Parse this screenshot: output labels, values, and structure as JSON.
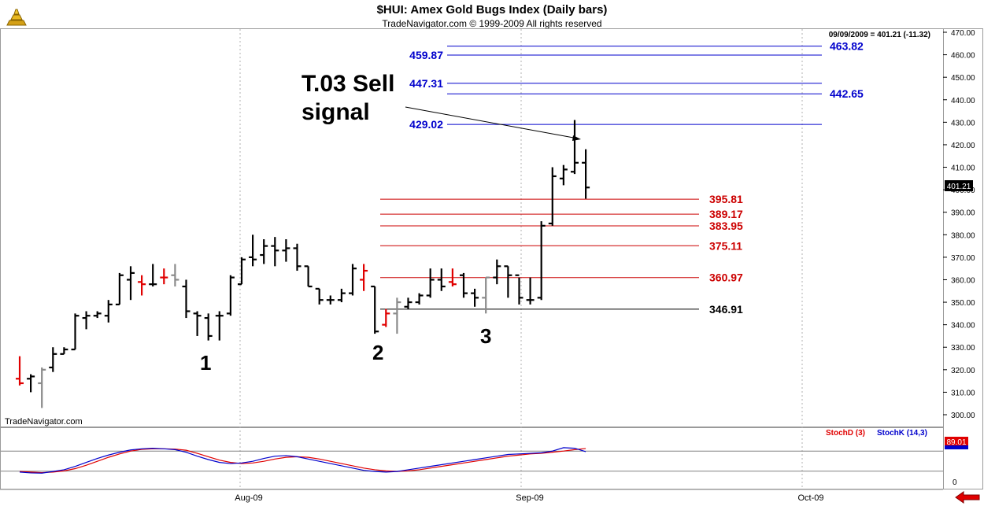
{
  "header": {
    "title": "$HUI:  Amex Gold Bugs Index  (Daily bars)",
    "subtitle": "TradeNavigator.com © 1999-2009 All rights reserved",
    "quote": "09/09/2009 = 401.21 (-11.32)",
    "last_price_tag": "401.21",
    "watermark": "TradeNavigator.com"
  },
  "colors": {
    "up_bar": "#000000",
    "down_bar": "#e00000",
    "neutral_bar": "#8a8a8a",
    "blue_level": "#0000cc",
    "red_level": "#cc0000",
    "stoch_d": "#e00000",
    "stoch_k": "#0000cc"
  },
  "chart_data": [
    {
      "type": "ohlc",
      "ylim": [
        295,
        472
      ],
      "ticks": [
        300,
        310,
        320,
        330,
        340,
        350,
        360,
        370,
        380,
        390,
        400,
        410,
        420,
        430,
        440,
        450,
        460,
        470
      ],
      "tick_labels": [
        "300.00",
        "310.00",
        "320.00",
        "330.00",
        "340.00",
        "350.00",
        "360.00",
        "370.00",
        "380.00",
        "390.00",
        "400.00",
        "410.00",
        "420.00",
        "430.00",
        "440.00",
        "450.00",
        "460.00",
        "470.00"
      ],
      "x_labels": [
        "Aug-09",
        "Sep-09",
        "Oct-09"
      ],
      "bars": [
        {
          "o": 316,
          "h": 326,
          "l": 313,
          "c": 314,
          "col": "down"
        },
        {
          "o": 316,
          "h": 318,
          "l": 310,
          "c": 317,
          "col": "up"
        },
        {
          "o": 314,
          "h": 321,
          "l": 303,
          "c": 320,
          "col": "neutral"
        },
        {
          "o": 321,
          "h": 330,
          "l": 319,
          "c": 327,
          "col": "up"
        },
        {
          "o": 327,
          "h": 330,
          "l": 327,
          "c": 329,
          "col": "up"
        },
        {
          "o": 329,
          "h": 345,
          "l": 329,
          "c": 344,
          "col": "up"
        },
        {
          "o": 343,
          "h": 346,
          "l": 338,
          "c": 344,
          "col": "up"
        },
        {
          "o": 344,
          "h": 346,
          "l": 343,
          "c": 345,
          "col": "up"
        },
        {
          "o": 344,
          "h": 351,
          "l": 341,
          "c": 349,
          "col": "up"
        },
        {
          "o": 349,
          "h": 363,
          "l": 349,
          "c": 362,
          "col": "up"
        },
        {
          "o": 360,
          "h": 366,
          "l": 351,
          "c": 363,
          "col": "up"
        },
        {
          "o": 359,
          "h": 362,
          "l": 353,
          "c": 358,
          "col": "down"
        },
        {
          "o": 358,
          "h": 367,
          "l": 357,
          "c": 358,
          "col": "up"
        },
        {
          "o": 361,
          "h": 365,
          "l": 358,
          "c": 361,
          "col": "down"
        },
        {
          "o": 362,
          "h": 367,
          "l": 357,
          "c": 360,
          "col": "neutral"
        },
        {
          "o": 357,
          "h": 360,
          "l": 343,
          "c": 346,
          "col": "up"
        },
        {
          "o": 345,
          "h": 346,
          "l": 335,
          "c": 344,
          "col": "up"
        },
        {
          "o": 343,
          "h": 345,
          "l": 333,
          "c": 335,
          "col": "up"
        },
        {
          "o": 344,
          "h": 346,
          "l": 333,
          "c": 344,
          "col": "up"
        },
        {
          "o": 345,
          "h": 362,
          "l": 344,
          "c": 361,
          "col": "up"
        },
        {
          "o": 358,
          "h": 370,
          "l": 358,
          "c": 369,
          "col": "up"
        },
        {
          "o": 370,
          "h": 380,
          "l": 366,
          "c": 369,
          "col": "up"
        },
        {
          "o": 371,
          "h": 378,
          "l": 367,
          "c": 375,
          "col": "up"
        },
        {
          "o": 375,
          "h": 379,
          "l": 366,
          "c": 373,
          "col": "up"
        },
        {
          "o": 373,
          "h": 378,
          "l": 368,
          "c": 374,
          "col": "up"
        },
        {
          "o": 374,
          "h": 376,
          "l": 364,
          "c": 366,
          "col": "up"
        },
        {
          "o": 366,
          "h": 366,
          "l": 357,
          "c": 357,
          "col": "up"
        },
        {
          "o": 356,
          "h": 356,
          "l": 349,
          "c": 351,
          "col": "up"
        },
        {
          "o": 351,
          "h": 353,
          "l": 349,
          "c": 351,
          "col": "up"
        },
        {
          "o": 351,
          "h": 356,
          "l": 350,
          "c": 354,
          "col": "up"
        },
        {
          "o": 354,
          "h": 367,
          "l": 353,
          "c": 365,
          "col": "up"
        },
        {
          "o": 360,
          "h": 367,
          "l": 355,
          "c": 364,
          "col": "down"
        },
        {
          "o": 357,
          "h": 357,
          "l": 336,
          "c": 337,
          "col": "up"
        },
        {
          "o": 340,
          "h": 347,
          "l": 339,
          "c": 345,
          "col": "down"
        },
        {
          "o": 345,
          "h": 352,
          "l": 336,
          "c": 350,
          "col": "neutral"
        },
        {
          "o": 348,
          "h": 352,
          "l": 347,
          "c": 350,
          "col": "up"
        },
        {
          "o": 350,
          "h": 354,
          "l": 349,
          "c": 353,
          "col": "up"
        },
        {
          "o": 353,
          "h": 365,
          "l": 352,
          "c": 360,
          "col": "up"
        },
        {
          "o": 360,
          "h": 365,
          "l": 355,
          "c": 357,
          "col": "up"
        },
        {
          "o": 359,
          "h": 365,
          "l": 357,
          "c": 358,
          "col": "down"
        },
        {
          "o": 362,
          "h": 363,
          "l": 352,
          "c": 354,
          "col": "up"
        },
        {
          "o": 354,
          "h": 356,
          "l": 348,
          "c": 352,
          "col": "up"
        },
        {
          "o": 352,
          "h": 361,
          "l": 345,
          "c": 361,
          "col": "neutral"
        },
        {
          "o": 361,
          "h": 369,
          "l": 358,
          "c": 366,
          "col": "up"
        },
        {
          "o": 366,
          "h": 366,
          "l": 352,
          "c": 362,
          "col": "up"
        },
        {
          "o": 362,
          "h": 361,
          "l": 349,
          "c": 352,
          "col": "up"
        },
        {
          "o": 351,
          "h": 361,
          "l": 349,
          "c": 351,
          "col": "up"
        },
        {
          "o": 352,
          "h": 386,
          "l": 351,
          "c": 384,
          "col": "up"
        },
        {
          "o": 385,
          "h": 410,
          "l": 384,
          "c": 406,
          "col": "up"
        },
        {
          "o": 405,
          "h": 411,
          "l": 402,
          "c": 409,
          "col": "up"
        },
        {
          "o": 408,
          "h": 431,
          "l": 407,
          "c": 412,
          "col": "up"
        },
        {
          "o": 412,
          "h": 418,
          "l": 396,
          "c": 401,
          "col": "up"
        }
      ],
      "levels": [
        {
          "label": "463.82",
          "value": 463.82,
          "color": "blue",
          "label_side": "right"
        },
        {
          "label": "459.87",
          "value": 459.87,
          "color": "blue",
          "label_side": "left"
        },
        {
          "label": "447.31",
          "value": 447.31,
          "color": "blue",
          "label_side": "left"
        },
        {
          "label": "442.65",
          "value": 442.65,
          "color": "blue",
          "label_side": "right"
        },
        {
          "label": "429.02",
          "value": 429.02,
          "color": "blue",
          "label_side": "left"
        },
        {
          "label": "395.81",
          "value": 395.81,
          "color": "red",
          "label_side": "right"
        },
        {
          "label": "389.17",
          "value": 389.17,
          "color": "red",
          "label_side": "right"
        },
        {
          "label": "383.95",
          "value": 383.95,
          "color": "red",
          "label_side": "right"
        },
        {
          "label": "375.11",
          "value": 375.11,
          "color": "red",
          "label_side": "right"
        },
        {
          "label": "360.97",
          "value": 360.97,
          "color": "red",
          "label_side": "right"
        },
        {
          "label": "346.91",
          "value": 346.91,
          "color": "black",
          "label_side": "right"
        }
      ],
      "annotations": [
        {
          "text": "T.03 Sell",
          "big": true
        },
        {
          "text": "signal",
          "big": true
        },
        {
          "text": "1"
        },
        {
          "text": "2"
        },
        {
          "text": "3"
        }
      ]
    },
    {
      "type": "line",
      "ylim": [
        0,
        100
      ],
      "tick_labels": [
        "0"
      ],
      "reading": "89.01",
      "series": [
        {
          "name": "StochD (3)",
          "color": "red",
          "values": [
            8,
            6,
            4,
            6,
            10,
            18,
            30,
            44,
            58,
            70,
            80,
            86,
            88,
            88,
            87,
            83,
            72,
            60,
            48,
            40,
            36,
            38,
            44,
            52,
            58,
            60,
            58,
            52,
            44,
            36,
            28,
            20,
            14,
            10,
            8,
            10,
            14,
            20,
            26,
            32,
            38,
            44,
            50,
            56,
            62,
            66,
            70,
            72,
            76,
            80,
            85,
            89
          ]
        },
        {
          "name": "StochK (14,3)",
          "color": "blue",
          "values": [
            6,
            3,
            2,
            8,
            14,
            26,
            40,
            54,
            66,
            76,
            84,
            88,
            90,
            88,
            85,
            76,
            62,
            50,
            40,
            36,
            38,
            44,
            54,
            62,
            64,
            60,
            52,
            44,
            36,
            28,
            20,
            12,
            8,
            6,
            8,
            14,
            20,
            26,
            32,
            38,
            44,
            50,
            56,
            62,
            68,
            70,
            72,
            74,
            80,
            92,
            90,
            78
          ]
        }
      ]
    }
  ]
}
